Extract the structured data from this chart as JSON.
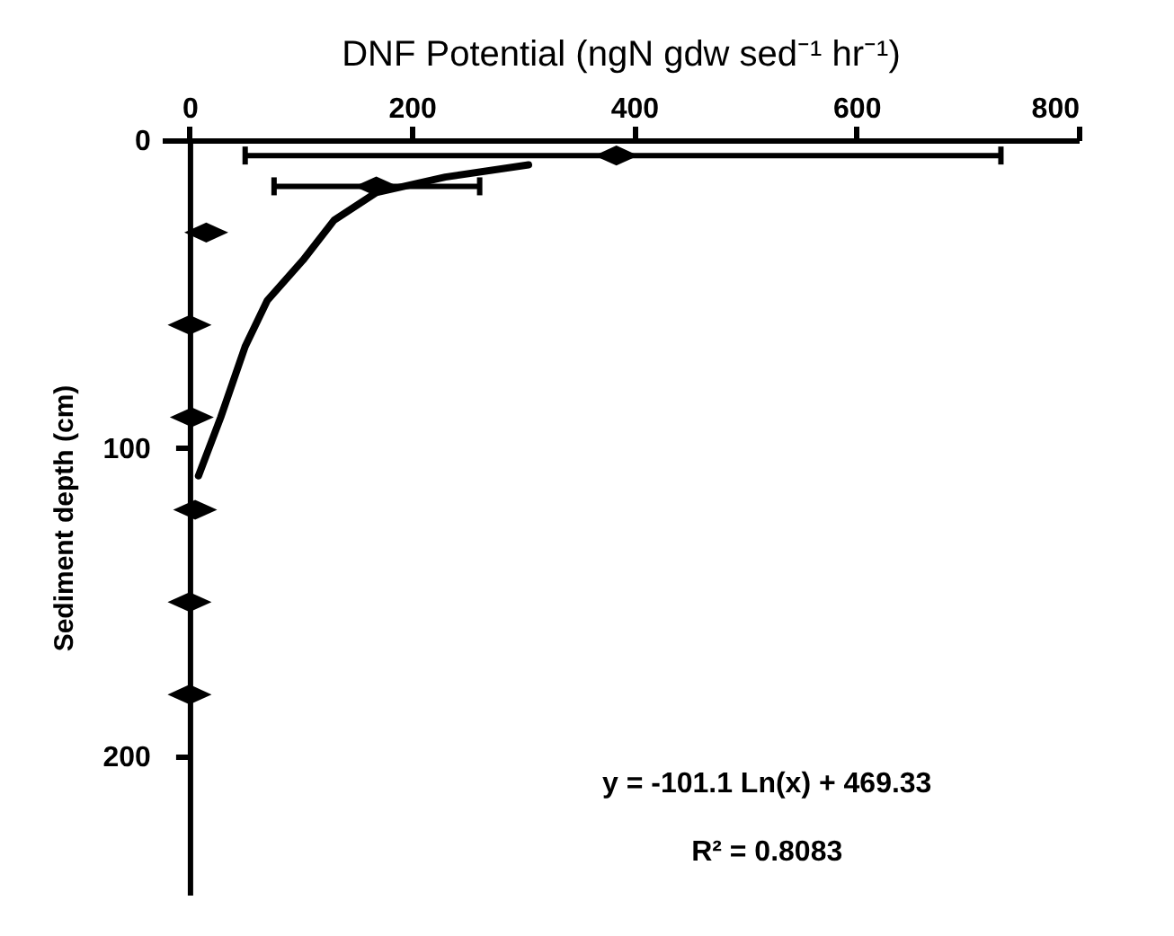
{
  "chart_data": {
    "type": "scatter",
    "xlabel": "DNF Potential (ngN gdw sed⁻¹ hr⁻¹)",
    "ylabel": "Sediment depth (cm)",
    "xlim": [
      -25,
      800
    ],
    "xticks": [
      0,
      200,
      400,
      600,
      800
    ],
    "ylim": [
      245,
      0
    ],
    "yticks": [
      0,
      100,
      200
    ],
    "grid": false,
    "marker": "diamond",
    "series": [
      {
        "type": "scatter",
        "color": "#000000",
        "x": [
          384,
          168,
          15,
          0,
          2,
          5,
          0,
          0
        ],
        "values": [
          5,
          15,
          30,
          60,
          90,
          120,
          150,
          180
        ],
        "xerrors": [
          [
            50,
            730
          ],
          [
            76,
            261
          ],
          null,
          null,
          null,
          null,
          null,
          null
        ]
      },
      {
        "type": "line",
        "color": "#000000",
        "marker": "none",
        "x": [
          305,
          230,
          168,
          130,
          102,
          70,
          50,
          28,
          8
        ],
        "values": [
          8,
          12,
          17,
          26,
          39,
          52,
          67,
          90,
          109
        ]
      }
    ],
    "annotations": [
      "y = -101.1 Ln(x) + 469.33",
      "R² = 0.8083"
    ]
  }
}
